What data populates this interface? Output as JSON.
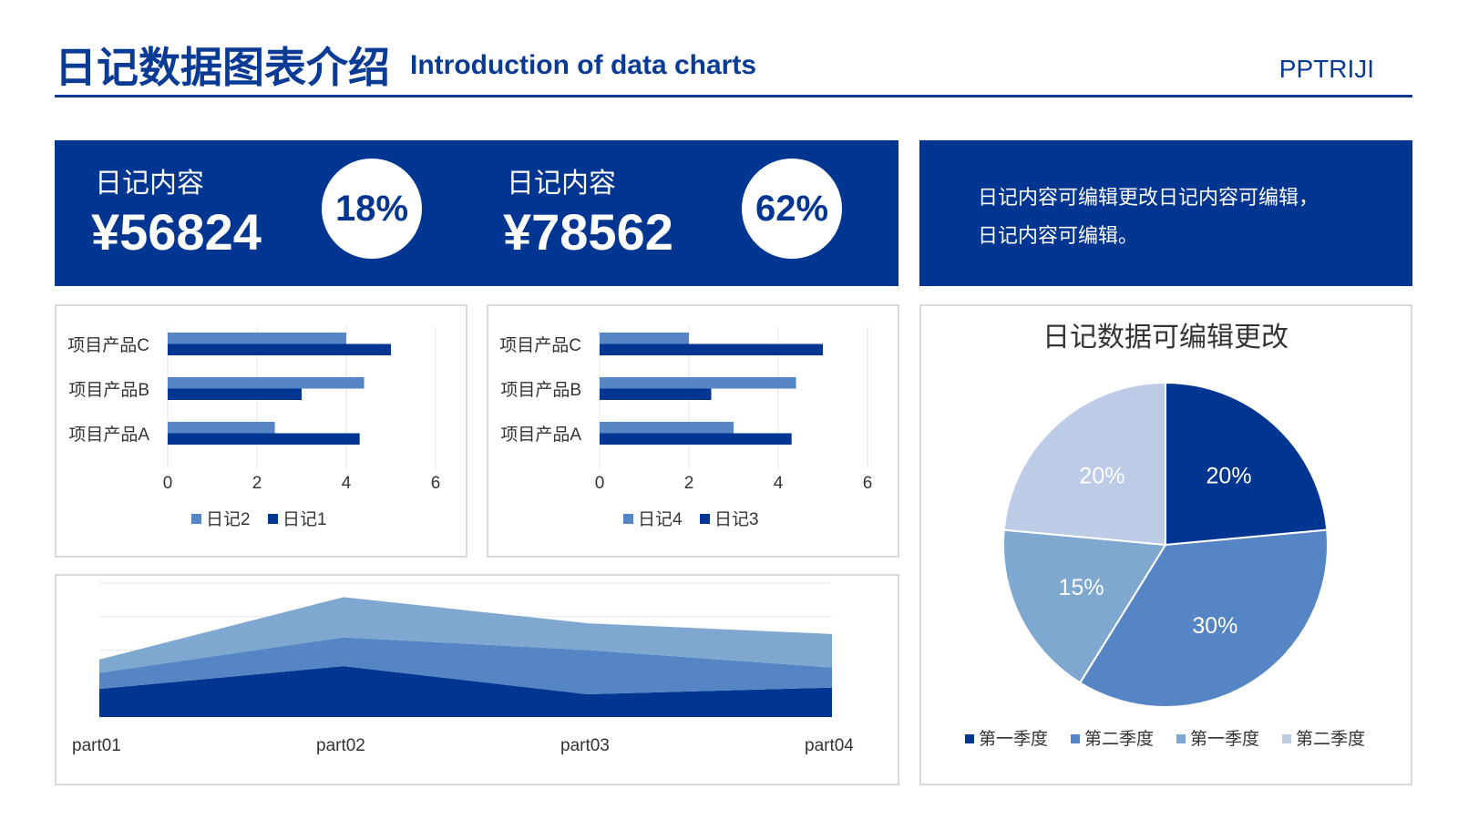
{
  "header": {
    "title_cn": "日记数据图表介绍",
    "title_en": "Introduction of data charts",
    "brand": "PPTRIJI"
  },
  "kpis": [
    {
      "label": "日记内容",
      "value": "¥56824",
      "percent": "18%"
    },
    {
      "label": "日记内容",
      "value": "¥78562",
      "percent": "62%"
    }
  ],
  "note": {
    "line1": "日记内容可编辑更改日记内容可编辑，",
    "line2": "日记内容可编辑。"
  },
  "colors": {
    "primary": "#003591",
    "mid": "#5585c5",
    "light": "#7fa8d0",
    "pale": "#bccce6"
  },
  "chart_data": [
    {
      "type": "bar",
      "orientation": "horizontal",
      "categories": [
        "项目产品A",
        "项目产品B",
        "项目产品C"
      ],
      "series": [
        {
          "name": "日记2",
          "values": [
            2.4,
            4.4,
            4.0
          ],
          "color": "#5585c5"
        },
        {
          "name": "日记1",
          "values": [
            4.3,
            3.0,
            5.0
          ],
          "color": "#003591"
        }
      ],
      "xlim": [
        0,
        6
      ],
      "xticks": [
        "0",
        "2",
        "4",
        "6"
      ],
      "grid": true,
      "legend": "bottom"
    },
    {
      "type": "bar",
      "orientation": "horizontal",
      "categories": [
        "项目产品A",
        "项目产品B",
        "项目产品C"
      ],
      "series": [
        {
          "name": "日记4",
          "values": [
            3.0,
            4.4,
            2.0
          ],
          "color": "#5585c5"
        },
        {
          "name": "日记3",
          "values": [
            4.3,
            2.5,
            5.0
          ],
          "color": "#003591"
        }
      ],
      "xlim": [
        0,
        6
      ],
      "xticks": [
        "0",
        "2",
        "4",
        "6"
      ],
      "grid": true,
      "legend": "bottom"
    },
    {
      "type": "area",
      "stacked": true,
      "categories": [
        "part01",
        "part02",
        "part03",
        "part04"
      ],
      "series": [
        {
          "values": [
            4.2,
            7.6,
            3.4,
            4.4
          ],
          "color": "#003591"
        },
        {
          "values": [
            2.4,
            4.3,
            6.6,
            3.0
          ],
          "color": "#5585c5"
        },
        {
          "values": [
            2.0,
            6.0,
            4.0,
            5.0
          ],
          "color": "#7fa8d0"
        }
      ],
      "ylim": [
        0,
        20
      ],
      "grid": true,
      "legend": "none"
    },
    {
      "type": "pie",
      "title": "日记数据可编辑更改",
      "slices": [
        {
          "label": "第一季度",
          "value": 20,
          "text": "20%",
          "color": "#003591"
        },
        {
          "label": "第二季度",
          "value": 30,
          "text": "30%",
          "color": "#5585c5"
        },
        {
          "label": "第一季度",
          "value": 15,
          "text": "15%",
          "color": "#7fa8d0"
        },
        {
          "label": "第二季度",
          "value": 20,
          "text": "20%",
          "color": "#bccce6"
        }
      ],
      "legend": "bottom"
    }
  ]
}
